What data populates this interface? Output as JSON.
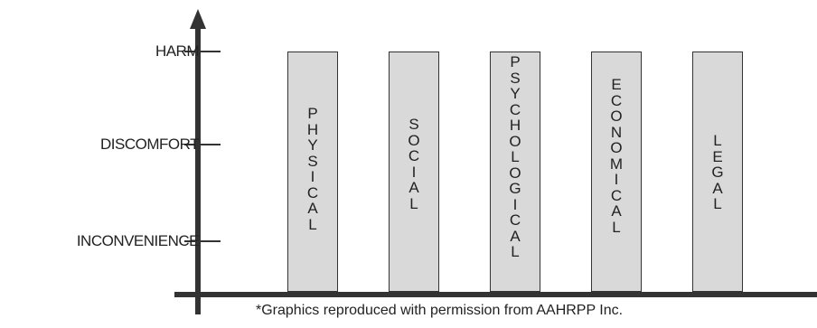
{
  "levels": {
    "harm": "HARM",
    "discomfort": "DISCOMFORT",
    "inconvenience": "INCONVENIENCE"
  },
  "categories": [
    "PHYSICAL",
    "SOCIAL",
    "PSYCHOLOGICAL",
    "ECONOMICAL",
    "LEGAL"
  ],
  "caption": "*Graphics reproduced with permission from AAHRPP Inc.",
  "colors": {
    "bar_fill": "#d9d9d9",
    "outline": "#333333",
    "axis": "#333333"
  }
}
